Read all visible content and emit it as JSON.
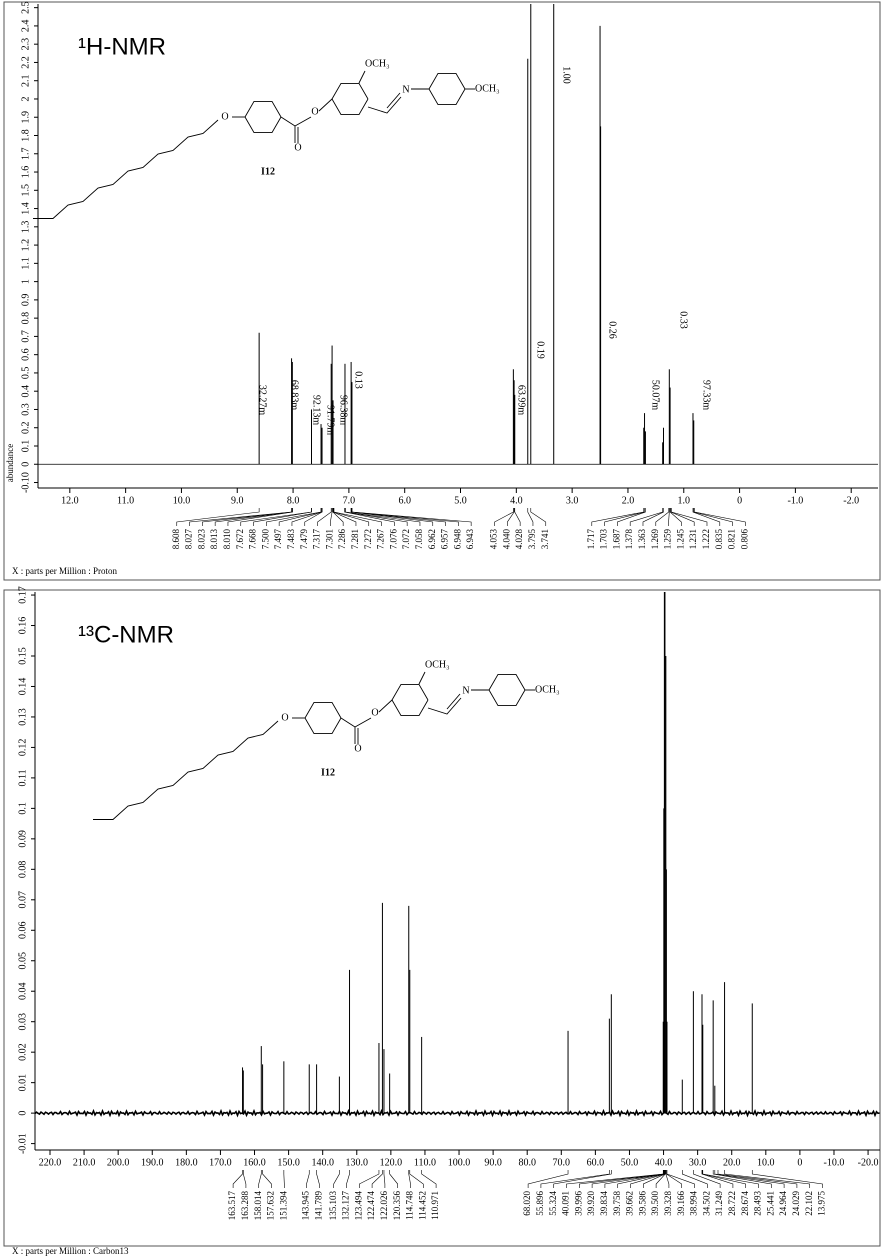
{
  "chart_data": [
    {
      "type": "spectrum",
      "title": "¹H-NMR",
      "ylabel": "abundance",
      "xlabel": "X : parts per Million : Proton",
      "color": "#000000",
      "xlim": [
        12.57,
        -2.48
      ],
      "ylim": [
        -0.13,
        2.52
      ],
      "xticks": [
        {
          "value": 12,
          "label": "12.0"
        },
        {
          "value": 11,
          "label": "11.0"
        },
        {
          "value": 10,
          "label": "10.0"
        },
        {
          "value": 9,
          "label": "9.0"
        },
        {
          "value": 8,
          "label": "8.0"
        },
        {
          "value": 7,
          "label": "7.0"
        },
        {
          "value": 6,
          "label": "6.0"
        },
        {
          "value": 5,
          "label": "5.0"
        },
        {
          "value": 4,
          "label": "4.0"
        },
        {
          "value": 3,
          "label": "3.0"
        },
        {
          "value": 2,
          "label": "2.0"
        },
        {
          "value": 1,
          "label": "1.0"
        },
        {
          "value": 0,
          "label": "0"
        },
        {
          "value": -1,
          "label": "-1.0"
        },
        {
          "value": -2,
          "label": "-2.0"
        }
      ],
      "yticks": [
        {
          "value": -0.1,
          "label": "-0.10"
        },
        0,
        0.1,
        0.2,
        0.3,
        0.4,
        0.5,
        0.6,
        0.7,
        0.8,
        0.9,
        1,
        1.1,
        1.2,
        1.3,
        1.4,
        1.5,
        1.6,
        1.7,
        1.8,
        1.9,
        2,
        2.1,
        2.2,
        2.3,
        2.4,
        2.5
      ],
      "x": [
        8.608,
        8.027,
        8.013,
        7.67,
        7.499,
        7.481,
        7.317,
        7.301,
        7.284,
        7.07,
        6.96,
        6.945,
        4.053,
        4.04,
        4.028,
        3.795,
        3.741,
        3.33,
        2.5,
        2.49,
        1.717,
        1.703,
        1.687,
        1.378,
        1.363,
        1.259,
        1.245,
        0.835,
        0.821
      ],
      "values": [
        0.72,
        0.58,
        0.56,
        0.3,
        0.22,
        0.2,
        0.55,
        0.65,
        0.35,
        0.55,
        0.56,
        0.45,
        0.52,
        0.46,
        0.38,
        2.22,
        2.6,
        2.6,
        2.4,
        1.85,
        0.2,
        0.28,
        0.18,
        0.12,
        0.2,
        0.52,
        0.42,
        0.28,
        0.24
      ],
      "peak_labels": [
        "8.608",
        "8.027",
        "8.023",
        "8.013",
        "8.010",
        "7.672",
        "7.668",
        "7.500",
        "7.497",
        "7.483",
        "7.479",
        "7.317",
        "7.301",
        "7.286",
        "7.281",
        "7.272",
        "7.267",
        "7.076",
        "7.072",
        "7.058",
        "6.962",
        "6.957",
        "6.948",
        "6.943",
        "4.053",
        "4.040",
        "4.028",
        "3.795",
        "3.741",
        "1.717",
        "1.703",
        "1.687",
        "1.378",
        "1.363",
        "1.269",
        "1.259",
        "1.245",
        "1.231",
        "1.222",
        "0.835",
        "0.821",
        "0.806"
      ],
      "integrals": [
        "32.27m",
        "68.83m",
        "92.13m",
        "91.79m",
        "96.38m",
        "0.13",
        "63.99m",
        "0.19",
        "1.00",
        "0.26",
        "50.07m",
        "0.33",
        "97.33m"
      ],
      "structure": {
        "label": "I12",
        "atoms": [
          "O",
          "O",
          "O",
          "N"
        ],
        "substituents": [
          "OCH₃",
          "OCH₃"
        ]
      }
    },
    {
      "type": "spectrum",
      "title": "¹³C-NMR",
      "xlabel": "X : parts per Million : Carbon13",
      "color": "#000000",
      "xlim": [
        224.4,
        -23.5
      ],
      "ylim": [
        -0.0121,
        0.171
      ],
      "xticks": [
        {
          "value": 220,
          "label": "220.0"
        },
        {
          "value": 210,
          "label": "210.0"
        },
        {
          "value": 200,
          "label": "200.0"
        },
        {
          "value": 190,
          "label": "190.0"
        },
        {
          "value": 180,
          "label": "180.0"
        },
        {
          "value": 170,
          "label": "170.0"
        },
        {
          "value": 160,
          "label": "160.0"
        },
        {
          "value": 150,
          "label": "150.0"
        },
        {
          "value": 140,
          "label": "140.0"
        },
        {
          "value": 130,
          "label": "130.0"
        },
        {
          "value": 120,
          "label": "120.0"
        },
        {
          "value": 110,
          "label": "110.0"
        },
        {
          "value": 100,
          "label": "100.0"
        },
        {
          "value": 90,
          "label": "90.0"
        },
        {
          "value": 80,
          "label": "80.0"
        },
        {
          "value": 70,
          "label": "70.0"
        },
        {
          "value": 60,
          "label": "60.0"
        },
        {
          "value": 50,
          "label": "50.0"
        },
        {
          "value": 40,
          "label": "40.0"
        },
        {
          "value": 30,
          "label": "30.0"
        },
        {
          "value": 20,
          "label": "20.0"
        },
        {
          "value": 10,
          "label": "10.0"
        },
        {
          "value": 0,
          "label": "0"
        },
        {
          "value": -10,
          "label": "-10.0"
        },
        {
          "value": -20,
          "label": "-20.0"
        }
      ],
      "yticks": [
        -0.01,
        0,
        0.01,
        0.02,
        0.03,
        0.04,
        0.05,
        0.06,
        0.07,
        0.08,
        0.09,
        0.1,
        0.11,
        0.12,
        0.13,
        0.14,
        0.15,
        0.16,
        0.17
      ],
      "x": [
        163.517,
        163.288,
        158.014,
        157.632,
        151.394,
        143.945,
        141.789,
        135.103,
        132.127,
        123.494,
        122.474,
        122.026,
        120.356,
        114.748,
        114.452,
        110.971,
        68.02,
        55.896,
        55.324,
        40.091,
        39.92,
        39.758,
        39.586,
        39.328,
        39.166,
        38.994,
        34.502,
        31.249,
        28.722,
        28.493,
        25.441,
        24.964,
        22.102,
        13.975
      ],
      "values": [
        0.015,
        0.014,
        0.022,
        0.016,
        0.017,
        0.016,
        0.016,
        0.012,
        0.047,
        0.023,
        0.069,
        0.021,
        0.013,
        0.068,
        0.047,
        0.025,
        0.027,
        0.031,
        0.039,
        0.03,
        0.1,
        0.18,
        0.18,
        0.15,
        0.08,
        0.03,
        0.011,
        0.04,
        0.039,
        0.029,
        0.037,
        0.009,
        0.043,
        0.036
      ],
      "peak_labels": [
        "163.517",
        "163.288",
        "158.014",
        "157.632",
        "151.394",
        "143.945",
        "141.789",
        "135.103",
        "132.127",
        "123.494",
        "122.474",
        "122.026",
        "120.356",
        "114.748",
        "114.452",
        "110.971",
        "68.020",
        "55.896",
        "55.324",
        "40.091",
        "39.996",
        "39.920",
        "39.834",
        "39.758",
        "39.662",
        "39.586",
        "39.500",
        "39.328",
        "39.166",
        "38.994",
        "34.502",
        "31.249",
        "28.722",
        "28.674",
        "28.493",
        "25.441",
        "24.964",
        "24.029",
        "22.102",
        "13.975"
      ],
      "structure": {
        "label": "I12",
        "atoms": [
          "O",
          "O",
          "O",
          "N"
        ],
        "substituents": [
          "OCH₃",
          "OCH₃"
        ]
      }
    }
  ]
}
